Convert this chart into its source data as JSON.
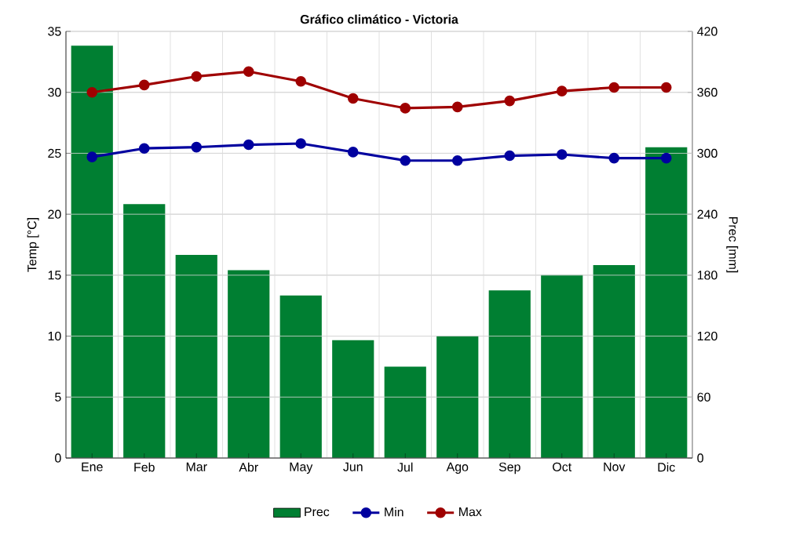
{
  "chart_data": {
    "type": "line",
    "title": "Gráfico climático - Victoria",
    "ylabel": "Temp [°C]",
    "y2label": "Prec [mm]",
    "categories": [
      "Ene",
      "Feb",
      "Mar",
      "Abr",
      "May",
      "Jun",
      "Jul",
      "Ago",
      "Sep",
      "Oct",
      "Nov",
      "Dic"
    ],
    "series": [
      {
        "name": "Prec",
        "type": "bar",
        "axis": "y2",
        "color": "#007f32",
        "values": [
          406,
          250,
          200,
          185,
          160,
          116,
          90,
          120,
          165,
          180,
          190,
          306
        ]
      },
      {
        "name": "Min",
        "color": "#00009f",
        "values": [
          24.7,
          25.4,
          25.5,
          25.7,
          25.8,
          25.1,
          24.4,
          24.4,
          24.8,
          24.9,
          24.6,
          24.6
        ]
      },
      {
        "name": "Max",
        "color": "#9f0000",
        "values": [
          30,
          30.6,
          31.3,
          31.7,
          30.9,
          29.5,
          28.7,
          28.8,
          29.3,
          30.1,
          30.4,
          30.4
        ]
      }
    ],
    "ylim": [
      0,
      35
    ],
    "yticks": [
      0,
      5,
      10,
      15,
      20,
      25,
      30,
      35
    ],
    "y2lim": [
      0,
      420
    ],
    "y2ticks": [
      0,
      60,
      120,
      180,
      240,
      300,
      360,
      420
    ],
    "grid": true,
    "legend": "bottom",
    "marker": "circle",
    "line_style": "solid"
  }
}
